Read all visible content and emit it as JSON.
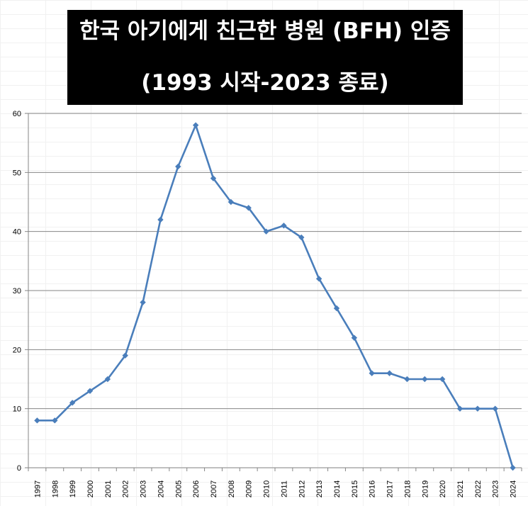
{
  "title": {
    "line1": "한국 아기에게 친근한 병원 (BFH) 인증",
    "line2": "(1993 시작-2023 종료)"
  },
  "colors": {
    "line": "#4a7ebb",
    "marker": "#4a7ebb",
    "gridline": "#868686",
    "title_bg": "#000000",
    "title_text": "#ffffff"
  },
  "chart_data": {
    "type": "line",
    "title": "한국 아기에게 친근한 병원 (BFH) 인증 (1993 시작-2023 종료)",
    "xlabel": "",
    "ylabel": "",
    "ylim": [
      0,
      60
    ],
    "yticks": [
      0,
      10,
      20,
      30,
      40,
      50,
      60
    ],
    "grid": true,
    "legend": "none",
    "categories": [
      "1997",
      "1998",
      "1999",
      "2000",
      "2001",
      "2002",
      "2003",
      "2004",
      "2005",
      "2006",
      "2007",
      "2008",
      "2009",
      "2010",
      "2011",
      "2012",
      "2013",
      "2014",
      "2015",
      "2016",
      "2017",
      "2018",
      "2019",
      "2020",
      "2021",
      "2022",
      "2023",
      "2024"
    ],
    "series": [
      {
        "values": [
          8,
          8,
          11,
          13,
          15,
          19,
          28,
          42,
          51,
          58,
          49,
          45,
          44,
          40,
          41,
          39,
          32,
          27,
          22,
          16,
          16,
          15,
          15,
          15,
          10,
          10,
          10,
          0
        ]
      }
    ]
  }
}
